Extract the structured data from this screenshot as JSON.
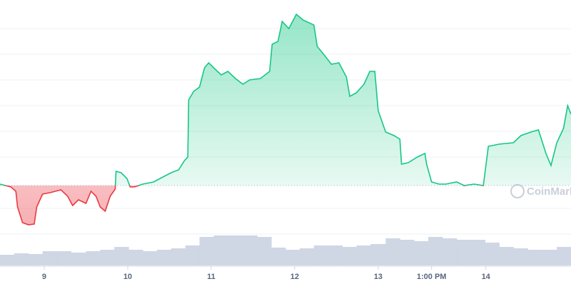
{
  "chart_data": {
    "type": "line",
    "watermark": "CoinMarketCap",
    "xlim": [
      8.47,
      15.31
    ],
    "xticks": [
      9,
      10,
      11,
      12,
      13,
      {
        "value": 13.64,
        "label": "1:00 PM"
      },
      {
        "value": 14.29,
        "label": "14"
      }
    ],
    "ylim": [
      0,
      330
    ],
    "baseline": 70,
    "up_color": "#16c784",
    "down_color": "#ea3943",
    "x": [
      8.47,
      8.6,
      8.66,
      8.68,
      8.74,
      8.81,
      8.88,
      8.91,
      8.98,
      9.07,
      9.2,
      9.28,
      9.34,
      9.41,
      9.5,
      9.56,
      9.62,
      9.67,
      9.73,
      9.79,
      9.85,
      9.86,
      9.92,
      9.99,
      10.03,
      10.08,
      10.18,
      10.31,
      10.39,
      10.52,
      10.61,
      10.68,
      10.72,
      10.73,
      10.79,
      10.86,
      10.92,
      10.97,
      11.03,
      11.12,
      11.2,
      11.29,
      11.38,
      11.46,
      11.59,
      11.7,
      11.73,
      11.8,
      11.85,
      11.93,
      12.02,
      12.1,
      12.23,
      12.27,
      12.36,
      12.44,
      12.53,
      12.62,
      12.66,
      12.74,
      12.83,
      12.9,
      12.96,
      13.0,
      13.09,
      13.19,
      13.26,
      13.28,
      13.36,
      13.47,
      13.56,
      13.58,
      13.64,
      13.73,
      13.81,
      13.94,
      14.03,
      14.15,
      14.26,
      14.32,
      14.45,
      14.62,
      14.71,
      14.83,
      14.92,
      15.01,
      15.07,
      15.14,
      15.22,
      15.27,
      15.31
    ],
    "values": [
      72,
      68,
      62,
      40,
      18,
      15,
      16,
      40,
      58,
      60,
      64,
      55,
      42,
      50,
      45,
      62,
      55,
      40,
      34,
      55,
      65,
      90,
      88,
      80,
      68,
      68,
      72,
      75,
      80,
      88,
      92,
      105,
      110,
      190,
      202,
      208,
      235,
      242,
      235,
      225,
      230,
      220,
      212,
      218,
      220,
      230,
      268,
      272,
      300,
      290,
      310,
      302,
      295,
      265,
      252,
      240,
      242,
      222,
      195,
      200,
      212,
      230,
      230,
      175,
      145,
      140,
      135,
      100,
      102,
      110,
      115,
      100,
      75,
      72,
      72,
      75,
      70,
      72,
      70,
      125,
      128,
      130,
      140,
      145,
      148,
      115,
      98,
      130,
      150,
      182,
      170
    ],
    "volume": {
      "color": "#cfd6e4",
      "ylim": [
        0,
        50
      ],
      "x": [
        8.47,
        8.64,
        8.81,
        8.98,
        9.15,
        9.32,
        9.5,
        9.67,
        9.84,
        10.01,
        10.18,
        10.35,
        10.52,
        10.69,
        10.86,
        11.03,
        11.2,
        11.38,
        11.55,
        11.72,
        11.89,
        12.06,
        12.23,
        12.4,
        12.57,
        12.74,
        12.91,
        13.09,
        13.26,
        13.43,
        13.6,
        13.77,
        13.94,
        14.11,
        14.28,
        14.45,
        14.62,
        14.79,
        14.97,
        15.14
      ],
      "values": [
        15,
        17,
        16,
        20,
        20,
        18,
        20,
        22,
        26,
        22,
        20,
        22,
        24,
        28,
        40,
        42,
        42,
        42,
        40,
        25,
        22,
        24,
        28,
        28,
        26,
        28,
        30,
        38,
        36,
        34,
        40,
        38,
        36,
        36,
        32,
        26,
        24,
        22,
        22,
        26
      ]
    }
  }
}
